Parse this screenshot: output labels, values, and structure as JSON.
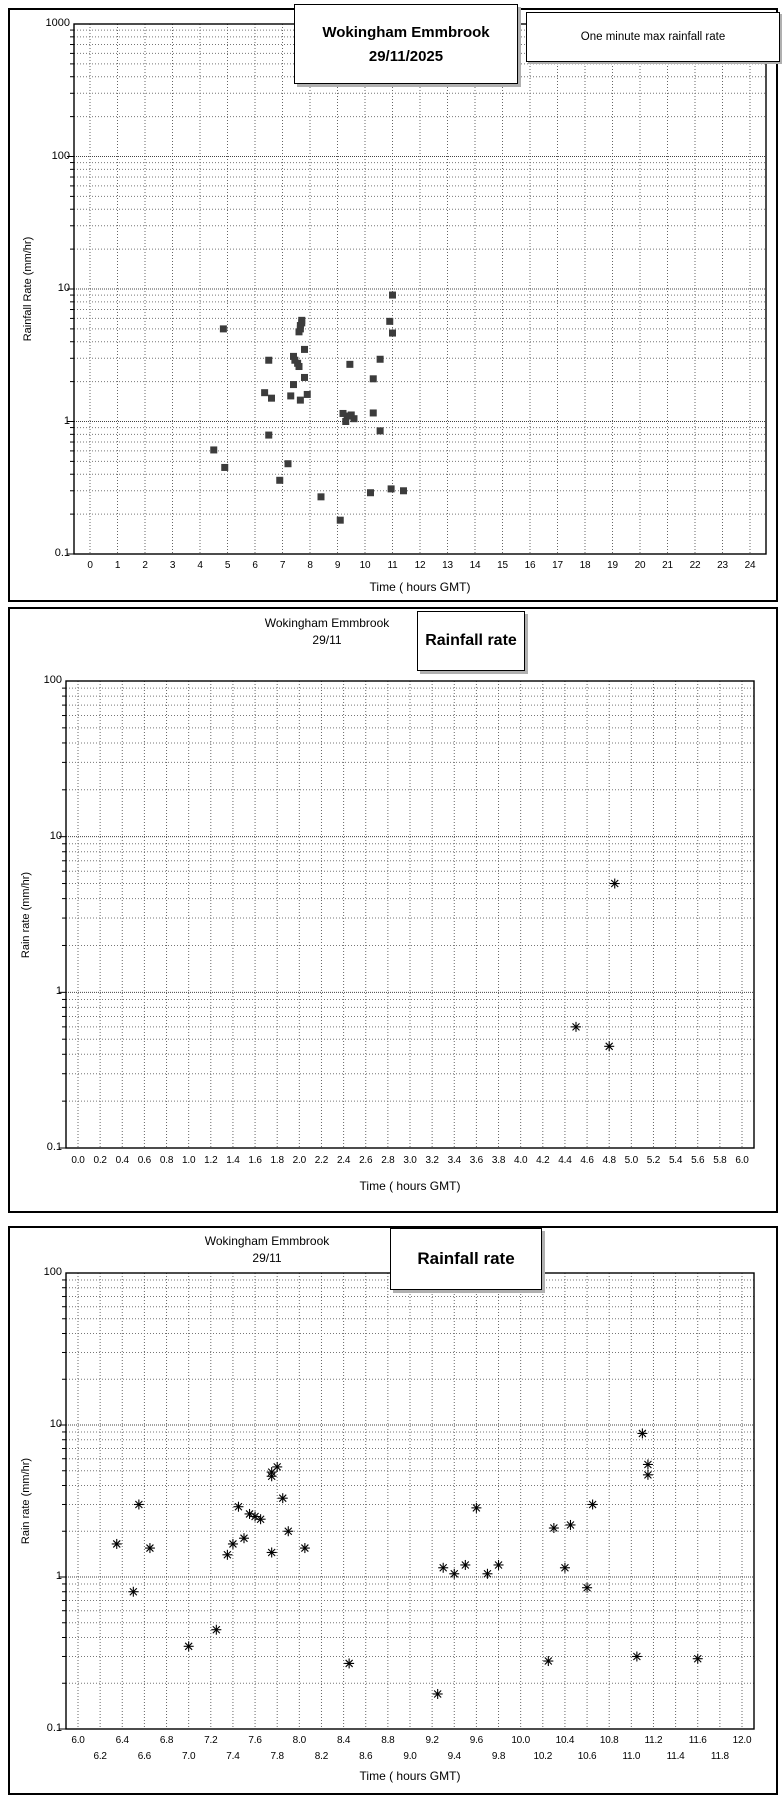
{
  "station": "Wokingham Emmbrook",
  "chart_data": [
    {
      "type": "scatter",
      "title_line1": "Wokingham Emmbrook",
      "title_line2": "29/11/2025",
      "legend": "One minute max rainfall rate",
      "xlabel": "Time ( hours GMT)",
      "ylabel": "Rainfall Rate (mm/hr)",
      "x_scale": "linear",
      "y_scale": "log",
      "xlim": [
        0,
        24
      ],
      "ylim": [
        0.1,
        1000
      ],
      "grid": true,
      "marker": "square",
      "marker_color": "#3c3c3c",
      "x_ticks": [
        "0",
        "1",
        "2",
        "3",
        "4",
        "5",
        "6",
        "7",
        "8",
        "9",
        "10",
        "11",
        "12",
        "13",
        "14",
        "15",
        "16",
        "17",
        "18",
        "19",
        "20",
        "21",
        "22",
        "23",
        "24"
      ],
      "y_ticks": [
        "1000",
        "100",
        "10",
        "1",
        "0.1"
      ],
      "points": [
        [
          4.5,
          0.61
        ],
        [
          4.85,
          5.0
        ],
        [
          4.9,
          0.45
        ],
        [
          6.35,
          1.65
        ],
        [
          6.5,
          2.9
        ],
        [
          6.5,
          0.79
        ],
        [
          6.6,
          1.5
        ],
        [
          6.9,
          0.36
        ],
        [
          7.2,
          0.48
        ],
        [
          7.3,
          1.56
        ],
        [
          7.4,
          1.9
        ],
        [
          7.4,
          3.1
        ],
        [
          7.45,
          2.9
        ],
        [
          7.55,
          2.75
        ],
        [
          7.6,
          2.6
        ],
        [
          7.6,
          4.75
        ],
        [
          7.65,
          5.0
        ],
        [
          7.65,
          5.3
        ],
        [
          7.7,
          5.55
        ],
        [
          7.7,
          5.8
        ],
        [
          7.65,
          1.45
        ],
        [
          7.8,
          3.5
        ],
        [
          7.8,
          2.15
        ],
        [
          7.9,
          1.6
        ],
        [
          8.4,
          0.27
        ],
        [
          9.1,
          0.18
        ],
        [
          9.2,
          1.15
        ],
        [
          9.3,
          1.0
        ],
        [
          9.35,
          1.1
        ],
        [
          9.45,
          2.7
        ],
        [
          9.5,
          1.12
        ],
        [
          9.6,
          1.05
        ],
        [
          10.2,
          0.29
        ],
        [
          10.3,
          2.1
        ],
        [
          10.3,
          1.16
        ],
        [
          10.55,
          2.95
        ],
        [
          10.55,
          0.85
        ],
        [
          10.9,
          5.7
        ],
        [
          10.95,
          0.31
        ],
        [
          11.0,
          9.0
        ],
        [
          11.0,
          4.65
        ],
        [
          11.4,
          0.3
        ]
      ]
    },
    {
      "type": "scatter",
      "title_line1": "Wokingham Emmbrook",
      "title_line2": "29/11",
      "panel_title": "Rainfall rate",
      "xlabel": "Time ( hours GMT)",
      "ylabel": "Rain rate (mm/hr)",
      "x_scale": "linear",
      "y_scale": "log",
      "xlim": [
        0,
        6
      ],
      "ylim": [
        0.1,
        100
      ],
      "grid": true,
      "marker": "star",
      "marker_color": "#000000",
      "x_ticks": [
        "0.0",
        "0.2",
        "0.4",
        "0.6",
        "0.8",
        "1.0",
        "1.2",
        "1.4",
        "1.6",
        "1.8",
        "2.0",
        "2.2",
        "2.4",
        "2.6",
        "2.8",
        "3.0",
        "3.2",
        "3.4",
        "3.6",
        "3.8",
        "4.0",
        "4.2",
        "4.4",
        "4.6",
        "4.8",
        "5.0",
        "5.2",
        "5.4",
        "5.6",
        "5.8",
        "6.0"
      ],
      "y_ticks": [
        "100",
        "10",
        "1",
        "0.1"
      ],
      "points": [
        [
          4.5,
          0.6
        ],
        [
          4.8,
          0.45
        ],
        [
          4.85,
          5.0
        ]
      ]
    },
    {
      "type": "scatter",
      "title_line1": "Wokingham Emmbrook",
      "title_line2": "29/11",
      "panel_title": "Rainfall rate",
      "xlabel": "Time ( hours GMT)",
      "ylabel": "Rain rate (mm/hr)",
      "x_scale": "linear",
      "y_scale": "log",
      "xlim": [
        6,
        12
      ],
      "ylim": [
        0.1,
        100
      ],
      "grid": true,
      "marker": "star",
      "marker_color": "#000000",
      "x_ticks": [
        "6.0",
        "6.2",
        "6.4",
        "6.6",
        "6.8",
        "7.0",
        "7.2",
        "7.4",
        "7.6",
        "7.8",
        "8.0",
        "8.2",
        "8.4",
        "8.6",
        "8.8",
        "9.0",
        "9.2",
        "9.4",
        "9.6",
        "9.8",
        "10.0",
        "10.2",
        "10.4",
        "10.6",
        "10.8",
        "11.0",
        "11.2",
        "11.4",
        "11.6",
        "11.8",
        "12.0"
      ],
      "y_ticks": [
        "100",
        "10",
        "1",
        "0.1"
      ],
      "points": [
        [
          6.35,
          1.65
        ],
        [
          6.5,
          0.8
        ],
        [
          6.55,
          3.0
        ],
        [
          6.65,
          1.55
        ],
        [
          7.0,
          0.35
        ],
        [
          7.25,
          0.45
        ],
        [
          7.35,
          1.4
        ],
        [
          7.4,
          1.65
        ],
        [
          7.45,
          2.9
        ],
        [
          7.5,
          1.8
        ],
        [
          7.55,
          2.6
        ],
        [
          7.6,
          2.5
        ],
        [
          7.65,
          2.4
        ],
        [
          7.75,
          1.45
        ],
        [
          7.75,
          4.6
        ],
        [
          7.75,
          4.9
        ],
        [
          7.8,
          5.3
        ],
        [
          7.85,
          3.3
        ],
        [
          7.9,
          2.0
        ],
        [
          8.05,
          1.55
        ],
        [
          8.45,
          0.27
        ],
        [
          9.25,
          0.17
        ],
        [
          9.3,
          1.15
        ],
        [
          9.4,
          1.05
        ],
        [
          9.5,
          1.2
        ],
        [
          9.6,
          2.85
        ],
        [
          9.7,
          1.05
        ],
        [
          9.8,
          1.2
        ],
        [
          10.25,
          0.28
        ],
        [
          10.3,
          2.1
        ],
        [
          10.45,
          2.2
        ],
        [
          10.4,
          1.15
        ],
        [
          10.6,
          0.85
        ],
        [
          10.65,
          3.0
        ],
        [
          11.05,
          0.3
        ],
        [
          11.1,
          8.8
        ],
        [
          11.15,
          5.5
        ],
        [
          11.15,
          4.7
        ],
        [
          11.6,
          0.29
        ]
      ]
    }
  ]
}
